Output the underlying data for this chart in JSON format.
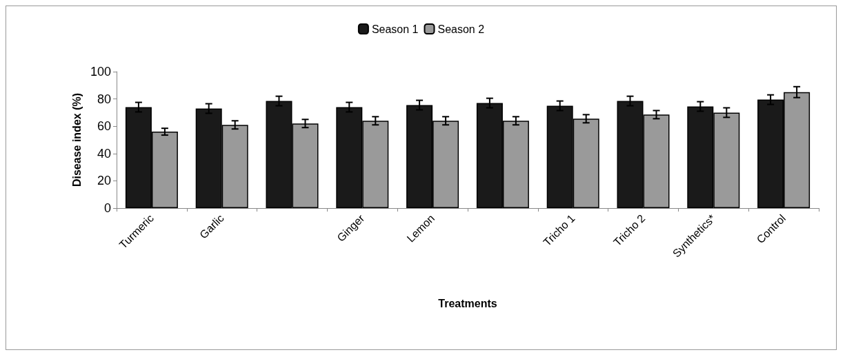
{
  "chart_data": {
    "type": "bar",
    "xlabel": "Treatments",
    "ylabel": "Disease index (%)",
    "categories": [
      "Turmeric",
      "Garlic",
      null,
      "Ginger",
      "Lemon",
      null,
      "Tricho 1",
      "Tricho 2",
      "Synthetics*",
      "Control"
    ],
    "series": [
      {
        "name": "Season 1",
        "color": "#1a1a1a",
        "values": [
          74,
          73,
          78.5,
          74,
          75.5,
          77,
          75,
          78.5,
          74.5,
          79.5
        ],
        "errors": [
          3.5,
          3.5,
          3.5,
          3.5,
          3.5,
          3.5,
          3.5,
          3.5,
          3.5,
          3.5
        ]
      },
      {
        "name": "Season 2",
        "color": "#9a9a9a",
        "values": [
          56,
          61,
          62,
          64,
          64,
          64,
          65.5,
          68.5,
          70,
          85
        ],
        "errors": [
          2.5,
          3,
          3,
          3,
          3,
          3,
          3,
          3,
          3.5,
          4
        ]
      }
    ],
    "ylim": [
      0,
      100
    ],
    "yticks": [
      0,
      20,
      40,
      60,
      80,
      100
    ],
    "grid": false,
    "legend": "top"
  }
}
